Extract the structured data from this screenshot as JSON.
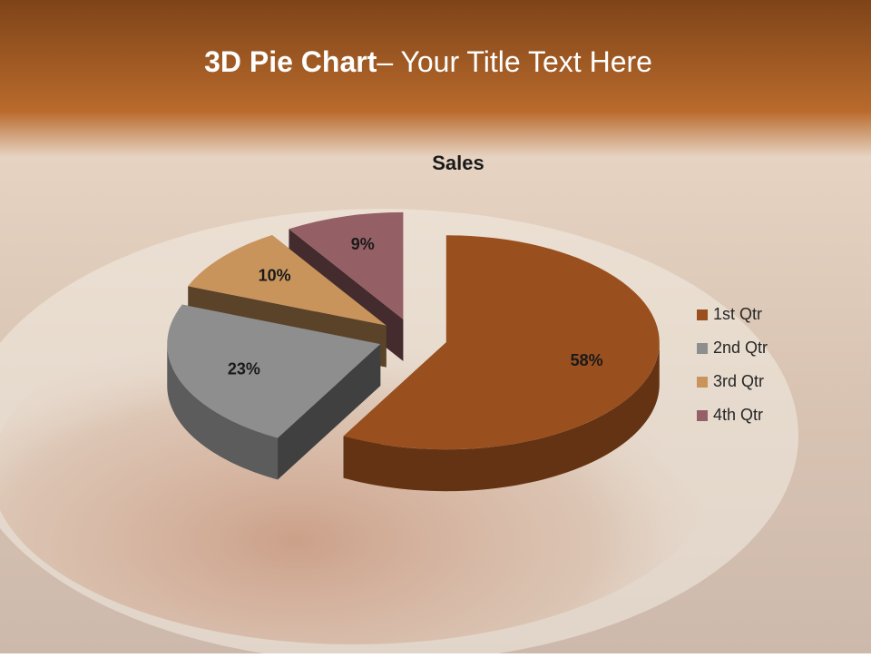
{
  "slide_title": {
    "bold": "3D Pie Chart",
    "rest": "– Your Title Text Here"
  },
  "chart_data": {
    "type": "pie",
    "title": "Sales",
    "categories": [
      "1st Qtr",
      "2nd Qtr",
      "3rd Qtr",
      "4th Qtr"
    ],
    "values": [
      58,
      23,
      10,
      9
    ],
    "value_labels": [
      "58%",
      "23%",
      "10%",
      "9%"
    ],
    "colors": [
      "#9a4f1e",
      "#8e8e8e",
      "#c8945c",
      "#955f66"
    ],
    "legend": "right"
  }
}
